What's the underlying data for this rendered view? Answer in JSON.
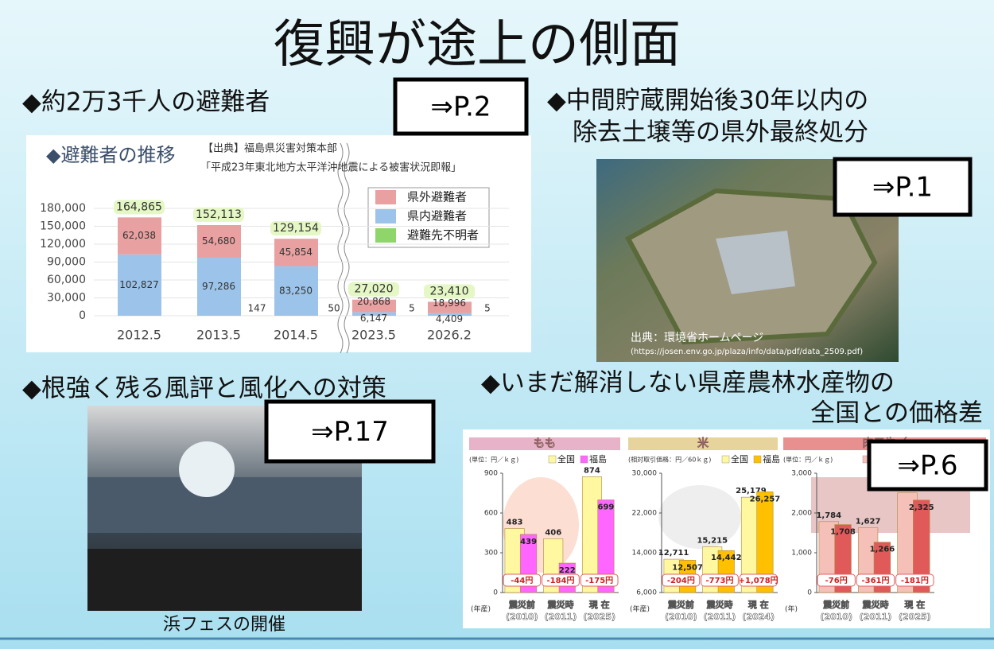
{
  "title": "復興が途上の側面",
  "sections": [
    {
      "heading": [
        "◆約2万3千人の避難者"
      ],
      "ref": "⇒P.2"
    },
    {
      "heading": [
        "◆中間貯蔵開始後30年以内の",
        "除去土壌等の県外最終処分"
      ],
      "ref": "⇒P.1",
      "photo_credit": [
        "出典：環境省ホームページ",
        "(https://josen.env.go.jp/plaza/info/data/pdf/data_2509.pdf)"
      ]
    },
    {
      "heading": [
        "◆根強く残る風評と風化への対策"
      ],
      "ref": "⇒P.17",
      "caption": "浜フェスの開催"
    },
    {
      "heading": [
        "◆いまだ解消しない県産農林水産物の",
        "全国との価格差"
      ],
      "ref": "⇒P.6"
    }
  ],
  "evacuee_chart": {
    "type": "bar",
    "title": "◆避難者の推移",
    "source": [
      "【出典】福島県災害対策本部",
      "「平成23年東北地方太平洋沖地震による被害状況即報」"
    ],
    "categories": [
      "2012.5",
      "2013.5",
      "2014.5",
      "2023.5",
      "2026.2"
    ],
    "series": [
      {
        "name": "県外避難者",
        "color": "#e8a0a0",
        "values": [
          62038,
          54680,
          45854,
          20868,
          18996
        ],
        "value_labels": [
          "62,038",
          "54,680",
          "45,854",
          "20,868",
          "18,996"
        ]
      },
      {
        "name": "県内避難者",
        "color": "#9cc4ea",
        "values": [
          102827,
          97286,
          83250,
          6147,
          4409
        ],
        "value_labels": [
          "102,827",
          "97,286",
          "83,250",
          "6,147",
          "4,409"
        ]
      },
      {
        "name": "避難先不明者",
        "color": "#8fd66a",
        "values": [
          null,
          147,
          50,
          5,
          5
        ]
      }
    ],
    "totals": [
      164865,
      152113,
      129154,
      27020,
      23410
    ],
    "total_labels": [
      "164,865",
      "152,113",
      "129,154",
      "27,020",
      "23,410"
    ],
    "ylim": [
      0,
      180000
    ],
    "yticks": [
      0,
      {
        "value": 30000,
        "label": "30,000"
      },
      {
        "value": 60000,
        "label": "60,000"
      },
      {
        "value": 90000,
        "label": "90,000"
      },
      {
        "value": 120000,
        "label": "120,000"
      },
      {
        "value": 150000,
        "label": "150,000"
      },
      {
        "value": 180000,
        "label": "180,000"
      }
    ]
  },
  "price_charts": [
    {
      "type": "bar",
      "name": "もも",
      "unit": "(単位：円／ｋｇ)",
      "x_label": "(年産)",
      "header_color": "#e6b3c8",
      "categories": [
        [
          "震災前",
          "(2010)"
        ],
        [
          "震災時",
          "(2011)"
        ],
        [
          "現 在",
          "(2025)"
        ]
      ],
      "series": [
        {
          "name": "全国",
          "color": "#fff8a0",
          "values": [
            483,
            406,
            874
          ]
        },
        {
          "name": "福島",
          "color": "#ff66ff",
          "values": [
            439,
            222,
            699
          ]
        }
      ],
      "ylim": [
        0,
        900
      ],
      "yticks": [
        0,
        300,
        600,
        900
      ],
      "differences": [
        -44,
        -184,
        -175
      ],
      "difference_labels": [
        "-44円",
        "-184円",
        "-175円"
      ]
    },
    {
      "type": "bar",
      "name": "米",
      "unit": "(相対取引価格：円／60ｋｇ)",
      "x_label": "(年産)",
      "header_color": "#e6d49c",
      "categories": [
        [
          "震災前",
          "(2010)"
        ],
        [
          "震災時",
          "(2011)"
        ],
        [
          "現 在",
          "(2024)"
        ]
      ],
      "series": [
        {
          "name": "全国",
          "color": "#fff8a0",
          "values": [
            12711,
            15215,
            25179
          ],
          "value_labels": [
            "12,711",
            "15,215",
            "25,179"
          ]
        },
        {
          "name": "福島",
          "color": "#ffc000",
          "values": [
            12507,
            14442,
            26257
          ],
          "value_labels": [
            "12,507",
            "14,442",
            "26,257"
          ]
        }
      ],
      "ylim": [
        6000,
        30000
      ],
      "yticks": [
        {
          "value": 6000,
          "label": "6,000"
        },
        {
          "value": 14000,
          "label": "14,000"
        },
        {
          "value": 22000,
          "label": "22,000"
        },
        {
          "value": 30000,
          "label": "30,000"
        }
      ],
      "differences": [
        -204,
        -773,
        1078
      ],
      "difference_labels": [
        "-204円",
        "-773円",
        "+1,078円"
      ]
    },
    {
      "type": "bar",
      "name": "肉用牛（",
      "unit": "(単位：円／ｋｇ)",
      "x_label": "(年)",
      "header_color": "#e89090",
      "categories": [
        [
          "震災前",
          "(2010)"
        ],
        [
          "震災時",
          "(2011)"
        ],
        [
          "現 在",
          "(2025)"
        ]
      ],
      "series": [
        {
          "name": "全国",
          "color": "#f4c0b8",
          "values": [
            1784,
            1627,
            2506
          ],
          "value_labels": [
            "1,784",
            "1,627",
            "2,506"
          ]
        },
        {
          "name": "福島",
          "color": "#e05a5a",
          "values": [
            1708,
            1266,
            2325
          ],
          "value_labels": [
            "1,708",
            "1,266",
            "2,325"
          ]
        }
      ],
      "ylim": [
        0,
        3000
      ],
      "yticks": [
        0,
        {
          "value": 1000,
          "label": "1,000"
        },
        {
          "value": 2000,
          "label": "2,000"
        },
        {
          "value": 3000,
          "label": "3,000"
        }
      ],
      "differences": [
        -76,
        -361,
        -181
      ],
      "difference_labels": [
        "-76円",
        "-361円",
        "-181円"
      ]
    }
  ]
}
